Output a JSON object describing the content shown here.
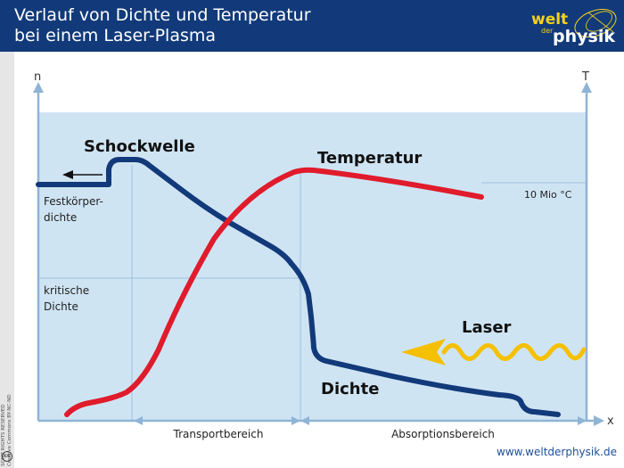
{
  "header": {
    "title_line1": "Verlauf von Dichte und Temperatur",
    "title_line2": "bei einem Laser-Plasma",
    "logo": {
      "part1": "welt",
      "part2": "der",
      "part3": "physik"
    }
  },
  "license": {
    "line1": "SOME RIGHTS RESERVED",
    "line2": "Creative Commons BY-NC-ND",
    "icon": "cc-icon"
  },
  "diagram": {
    "axis_left_label": "n",
    "axis_right_label": "T",
    "axis_x_label": "x",
    "curve_density_label": "Dichte",
    "curve_temperature_label": "Temperatur",
    "shockwave_label": "Schockwelle",
    "laser_label": "Laser",
    "solid_density_label_line1": "Festkörper-",
    "solid_density_label_line2": "dichte",
    "critical_density_label_line1": "kritische",
    "critical_density_label_line2": "Dichte",
    "temperature_level_label": "10 Mio °C",
    "region_transport_label": "Transportbereich",
    "region_absorption_label": "Absorptionsbereich",
    "colors": {
      "density_curve": "#123a7a",
      "temperature_curve": "#e01b2b",
      "laser": "#f5c000",
      "background_panel": "#cfe4f3",
      "axes": "#8fb4d6"
    }
  },
  "footer": {
    "url": "www.weltderphysik.de"
  }
}
